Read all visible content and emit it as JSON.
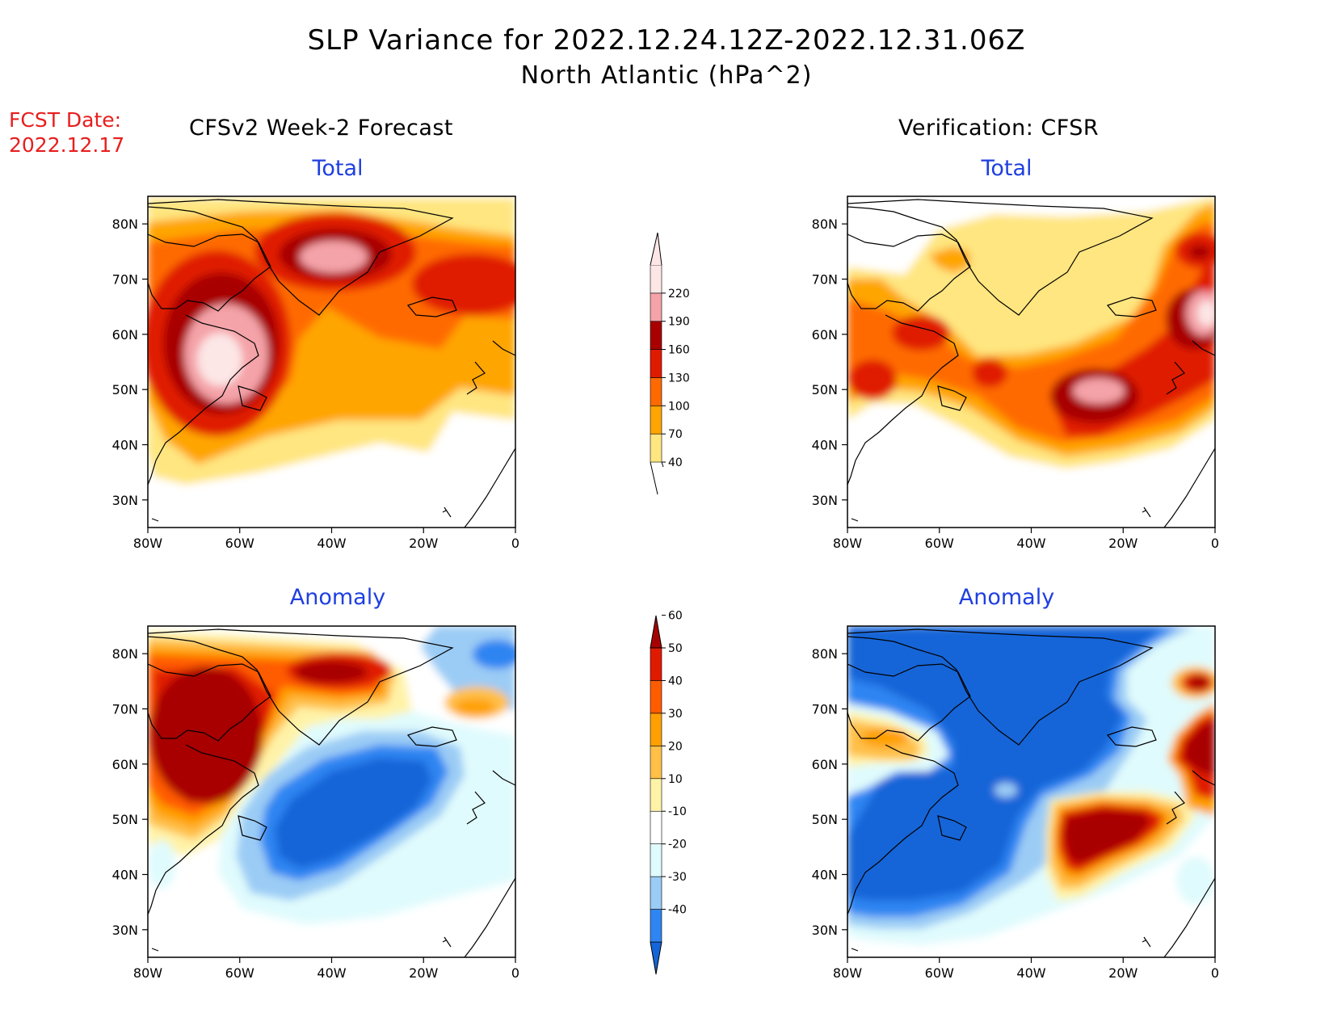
{
  "title": {
    "line1": "SLP Variance for 2022.12.24.12Z-2022.12.31.06Z",
    "line2": "North Atlantic (hPa^2)"
  },
  "fcst": {
    "label": "FCST Date:",
    "date": "2022.12.17"
  },
  "columns": {
    "left": "CFSv2 Week-2 Forecast",
    "right": "Verification: CFSR"
  },
  "panel_titles": {
    "fcst_total": "Total",
    "verif_total": "Total",
    "fcst_anom": "Anomaly",
    "verif_anom": "Anomaly"
  },
  "map_axes": {
    "lat_labels": [
      "80N",
      "70N",
      "60N",
      "50N",
      "40N",
      "30N"
    ],
    "lon_labels": [
      "80W",
      "60W",
      "40W",
      "20W",
      "0"
    ]
  },
  "colorbars": {
    "total": {
      "levels": [
        "40",
        "70",
        "100",
        "130",
        "160",
        "190",
        "220"
      ],
      "colors": [
        "#ffe680",
        "#ffa500",
        "#ff6a00",
        "#e01a00",
        "#a80000",
        "#f4a3a8",
        "#fde6e6"
      ]
    },
    "anomaly": {
      "levels": [
        "-40",
        "-30",
        "-20",
        "-10",
        "10",
        "20",
        "30",
        "40",
        "50",
        "60"
      ],
      "colors": [
        "#1565d8",
        "#2f85f2",
        "#9bccf5",
        "#e0fbfd",
        "#ffffff",
        "#fff3a8",
        "#ffc04a",
        "#ffa000",
        "#ff5c00",
        "#e01a00",
        "#a80000"
      ]
    }
  },
  "chart_data": [
    {
      "type": "heatmap",
      "panel": "CFSv2 Week-2 Forecast — Total",
      "units": "hPa^2",
      "lon_range": [
        -80,
        0
      ],
      "lat_range": [
        25,
        85
      ],
      "features": [
        {
          "center": [
            -65,
            54
          ],
          "peak_value": 220,
          "description": "maximum over Labrador / Hudson Strait"
        },
        {
          "center": [
            -42,
            75
          ],
          "peak_value": 190,
          "description": "maximum over central Greenland"
        },
        {
          "center": [
            -10,
            67
          ],
          "peak_value": 130,
          "description": "maximum over Norwegian Sea"
        }
      ]
    },
    {
      "type": "heatmap",
      "panel": "Verification: CFSR — Total",
      "units": "hPa^2",
      "lon_range": [
        -80,
        0
      ],
      "lat_range": [
        25,
        85
      ],
      "features": [
        {
          "center": [
            -25,
            50
          ],
          "peak_value": 190,
          "description": "maximum in central North Atlantic"
        },
        {
          "center": [
            -2,
            62
          ],
          "peak_value": 220,
          "description": "maximum near Norway"
        },
        {
          "center": [
            -5,
            75
          ],
          "peak_value": 160,
          "description": "maximum in Barents / Norwegian Sea"
        }
      ]
    },
    {
      "type": "heatmap",
      "panel": "CFSv2 Week-2 Forecast — Anomaly",
      "units": "hPa^2",
      "lon_range": [
        -80,
        0
      ],
      "lat_range": [
        25,
        85
      ],
      "features": [
        {
          "center": [
            -70,
            62
          ],
          "peak_value": 60,
          "description": "positive anomaly over Labrador / Hudson Bay"
        },
        {
          "center": [
            -40,
            75
          ],
          "peak_value": 60,
          "description": "positive anomaly over Greenland"
        },
        {
          "center": [
            -35,
            50
          ],
          "peak_value": -40,
          "description": "negative anomaly in central North Atlantic"
        }
      ]
    },
    {
      "type": "heatmap",
      "panel": "Verification: CFSR — Anomaly",
      "units": "hPa^2",
      "lon_range": [
        -80,
        0
      ],
      "lat_range": [
        25,
        85
      ],
      "features": [
        {
          "center": [
            -45,
            60
          ],
          "peak_value": -40,
          "description": "large negative anomaly over Greenland and western Atlantic"
        },
        {
          "center": [
            -22,
            45
          ],
          "peak_value": 60,
          "description": "positive anomaly in eastern North Atlantic"
        },
        {
          "center": [
            -3,
            62
          ],
          "peak_value": 60,
          "description": "positive anomaly near Norway"
        },
        {
          "center": [
            -68,
            61
          ],
          "peak_value": 30,
          "description": "weak positive anomaly over Labrador"
        }
      ]
    }
  ]
}
